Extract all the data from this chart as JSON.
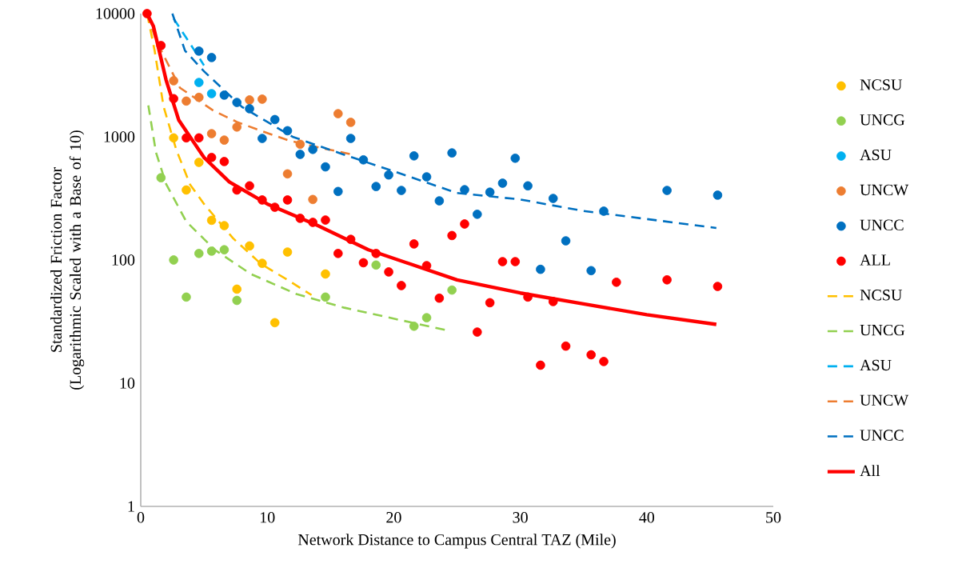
{
  "chart_data": {
    "type": "scatter",
    "xlabel": "Network Distance to Campus Central TAZ (Mile)",
    "ylabel": "Standardized Friction Factor (Logarithmic Scaled with a Base of 10)",
    "xlim": [
      0,
      50
    ],
    "xticks": [
      0,
      10,
      20,
      30,
      40,
      50
    ],
    "ylim": [
      1,
      10000
    ],
    "yticks": [
      1,
      10,
      100,
      1000,
      10000
    ],
    "log": "y",
    "legend": "right",
    "series": [
      {
        "name": "NCSU",
        "marker": "circle",
        "color": "#ffc000",
        "x": [
          2.6,
          3.6,
          4.6,
          5.6,
          6.6,
          7.6,
          8.6,
          9.6,
          10.6,
          11.6,
          14.6
        ],
        "values": [
          980,
          370,
          620,
          210,
          190,
          58,
          130,
          94,
          31,
          116,
          77
        ]
      },
      {
        "name": "UNCG",
        "marker": "circle",
        "color": "#92d050",
        "x": [
          1.6,
          2.6,
          3.6,
          4.6,
          5.6,
          6.6,
          7.6,
          14.6,
          18.6,
          21.6,
          22.6,
          24.6
        ],
        "values": [
          465,
          100,
          50,
          113,
          118,
          121,
          47,
          50,
          91,
          29,
          34,
          57
        ]
      },
      {
        "name": "ASU",
        "marker": "circle",
        "color": "#00b0f0",
        "x": [
          4.6,
          5.6
        ],
        "values": [
          2760,
          2240
        ]
      },
      {
        "name": "UNCW",
        "marker": "circle",
        "color": "#ed7d31",
        "x": [
          2.6,
          3.6,
          4.6,
          5.6,
          6.6,
          7.6,
          8.6,
          9.6,
          11.6,
          12.6,
          13.6,
          15.6,
          16.6
        ],
        "values": [
          2850,
          1950,
          2090,
          1060,
          940,
          1200,
          1990,
          2020,
          500,
          870,
          310,
          1540,
          1310
        ]
      },
      {
        "name": "UNCC",
        "marker": "circle",
        "color": "#0070c0",
        "x": [
          4.6,
          5.6,
          6.6,
          7.6,
          8.6,
          9.6,
          10.6,
          11.6,
          12.6,
          13.6,
          14.6,
          15.6,
          16.6,
          17.6,
          18.6,
          19.6,
          20.6,
          21.6,
          22.6,
          23.6,
          24.6,
          25.6,
          26.6,
          27.6,
          28.6,
          29.6,
          30.6,
          31.6,
          32.6,
          33.6,
          35.6,
          36.6,
          41.6,
          45.6
        ],
        "values": [
          4960,
          4400,
          2180,
          1900,
          1690,
          970,
          1380,
          1120,
          720,
          790,
          570,
          360,
          970,
          650,
          395,
          490,
          367,
          700,
          473,
          302,
          740,
          372,
          235,
          355,
          420,
          670,
          400,
          84,
          316,
          143,
          82,
          249,
          367,
          336
        ]
      },
      {
        "name": "ALL",
        "marker": "circle",
        "color": "#ff0000",
        "x": [
          0.5,
          1.6,
          2.6,
          3.6,
          4.6,
          5.6,
          6.6,
          7.6,
          8.6,
          9.6,
          10.6,
          11.6,
          12.6,
          13.6,
          14.6,
          15.6,
          16.6,
          17.6,
          18.6,
          19.6,
          20.6,
          21.6,
          22.6,
          23.6,
          24.6,
          25.6,
          26.6,
          27.6,
          28.6,
          29.6,
          30.6,
          31.6,
          32.6,
          33.6,
          35.6,
          36.6,
          37.6,
          41.6,
          45.6
        ],
        "values": [
          10000,
          5500,
          2040,
          980,
          980,
          680,
          630,
          370,
          400,
          307,
          268,
          307,
          218,
          202,
          211,
          113,
          147,
          95,
          113,
          80,
          62,
          135,
          90,
          49,
          158,
          196,
          26,
          45,
          97,
          97,
          50,
          14,
          46,
          20,
          17,
          15,
          66,
          69,
          61
        ]
      },
      {
        "name": "NCSU",
        "type": "line",
        "marker": "none",
        "line_style": "dashed",
        "color": "#ffc000",
        "x": [
          0.5,
          1.1,
          1.8,
          2.8,
          3.9,
          5,
          7.3,
          9.5,
          11.8,
          13.5
        ],
        "values": [
          10000,
          5000,
          1770,
          790,
          410,
          285,
          150,
          93,
          67,
          52
        ]
      },
      {
        "name": "UNCG",
        "type": "line",
        "marker": "none",
        "line_style": "dashed",
        "color": "#92d050",
        "x": [
          0.6,
          1.2,
          2,
          3.6,
          5.9,
          8.7,
          12.3,
          16.1,
          24.1
        ],
        "values": [
          1800,
          750,
          415,
          205,
          120,
          77,
          53,
          41,
          27
        ]
      },
      {
        "name": "ASU",
        "type": "line",
        "marker": "none",
        "line_style": "dashed",
        "color": "#00b0f0",
        "x": [
          2.6,
          4,
          5
        ],
        "values": [
          9100,
          5500,
          3800
        ]
      },
      {
        "name": "UNCW",
        "type": "line",
        "marker": "none",
        "line_style": "dashed",
        "color": "#ed7d31",
        "x": [
          0.5,
          1.2,
          3.1,
          5.75,
          7.6,
          9.5,
          11.6,
          14.3,
          16.7
        ],
        "values": [
          10000,
          6100,
          2500,
          1630,
          1320,
          1120,
          940,
          810,
          720
        ]
      },
      {
        "name": "UNCC",
        "type": "line",
        "marker": "none",
        "line_style": "dashed",
        "color": "#0070c0",
        "x": [
          2.5,
          3.5,
          5,
          8,
          12,
          16,
          20,
          25,
          30,
          35,
          40,
          45.5
        ],
        "values": [
          10000,
          5000,
          3400,
          1750,
          1000,
          720,
          525,
          350,
          310,
          250,
          215,
          182
        ]
      },
      {
        "name": "All",
        "type": "line",
        "marker": "none",
        "line_style": "solid",
        "color": "#ff0000",
        "x": [
          0.5,
          1,
          2,
          3,
          5,
          7,
          10,
          14,
          18,
          25,
          30,
          35,
          40,
          45.5
        ],
        "values": [
          10000,
          7900,
          2900,
          1370,
          680,
          430,
          285,
          190,
          121,
          69,
          54,
          44,
          36,
          30
        ]
      }
    ]
  }
}
